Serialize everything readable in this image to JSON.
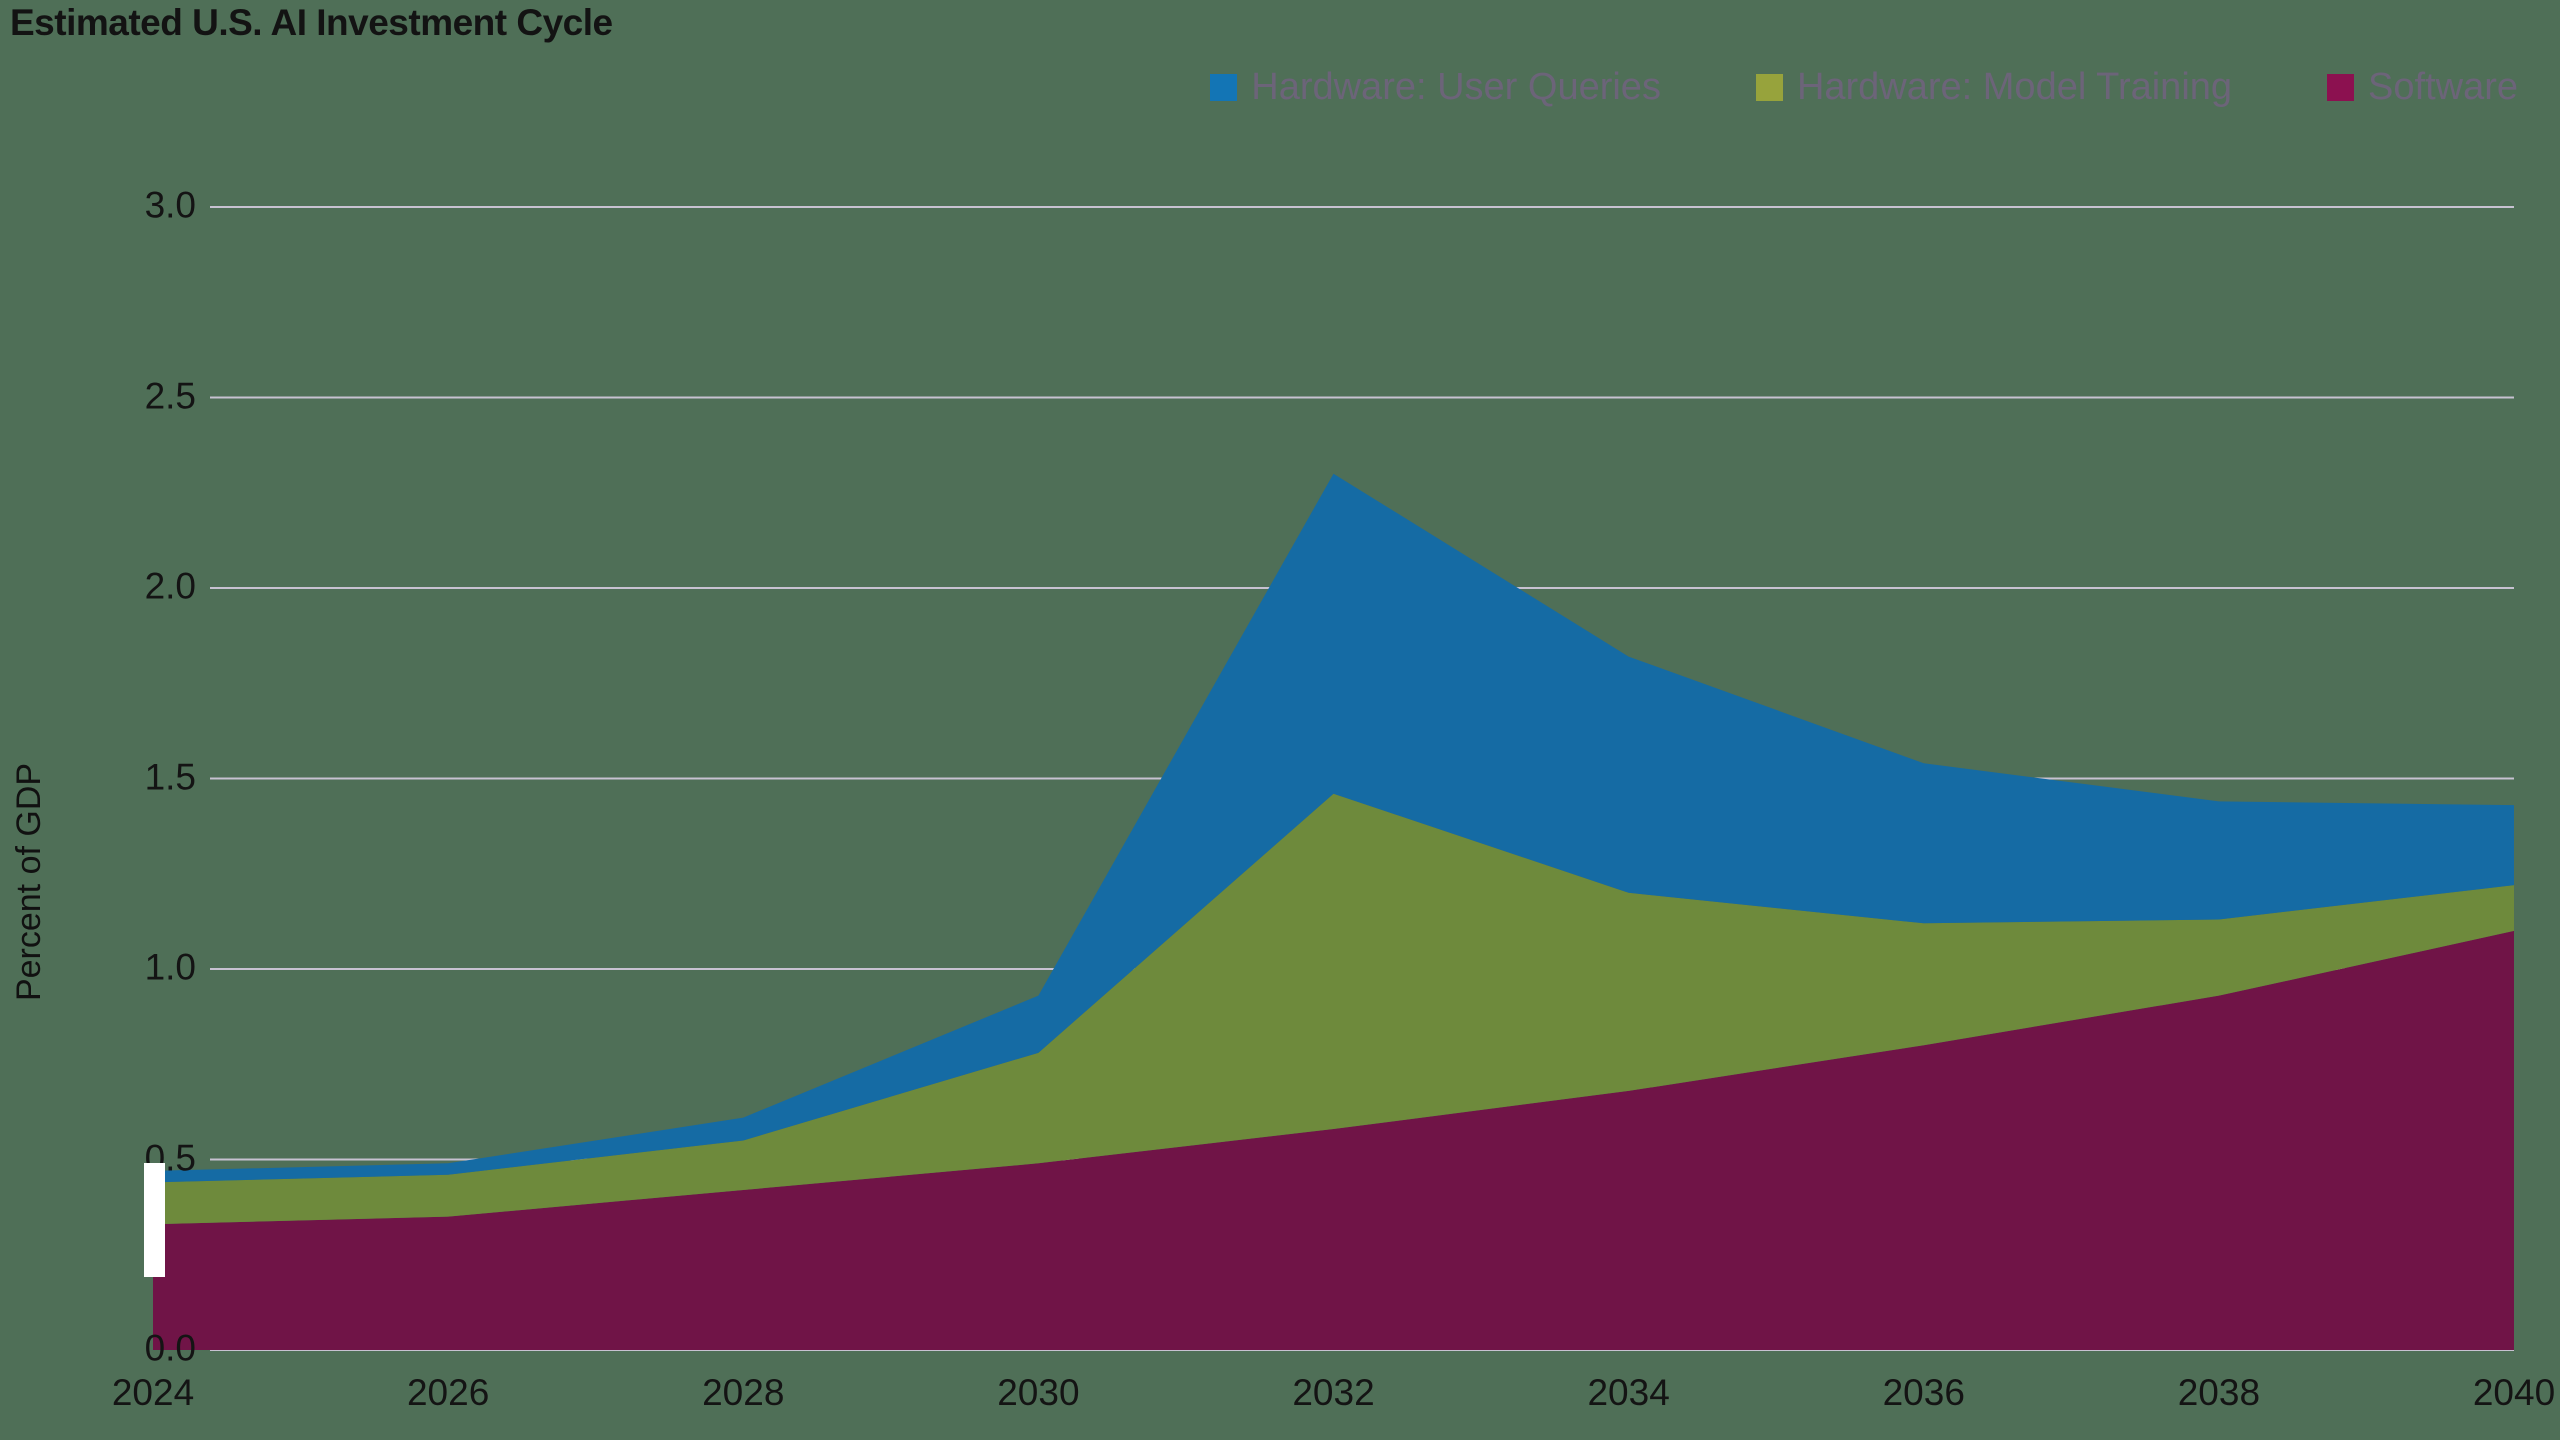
{
  "title": "Estimated U.S. AI Investment Cycle",
  "ylabel": "Percent of GDP",
  "colors": {
    "background": "#4f6f57",
    "gridline": "#c7c2d1",
    "legend_text": "#6c6479",
    "axis_text": "#141414",
    "title_text": "#131313"
  },
  "chart_data": {
    "type": "area",
    "stacked": true,
    "title": "Estimated U.S. AI Investment Cycle",
    "xlabel": "",
    "ylabel": "Percent of GDP",
    "ylim": [
      0,
      3.0
    ],
    "grid": true,
    "legend_position": "top-right",
    "x": [
      2024,
      2026,
      2028,
      2030,
      2032,
      2034,
      2036,
      2038,
      2040
    ],
    "x_tick_labels": [
      "2024",
      "2026",
      "2028",
      "2030",
      "2032",
      "2034",
      "2036",
      "2038",
      "2040"
    ],
    "y_ticks": [
      0.0,
      0.5,
      1.0,
      1.5,
      2.0,
      2.5,
      3.0
    ],
    "y_tick_labels": [
      "0.0",
      "0.5",
      "1.0",
      "1.5",
      "2.0",
      "2.5",
      "3.0"
    ],
    "series": [
      {
        "name": "Software",
        "color": "#701447",
        "legend_color": "#8c1150",
        "values": [
          0.33,
          0.35,
          0.42,
          0.49,
          0.58,
          0.68,
          0.8,
          0.93,
          1.1
        ]
      },
      {
        "name": "Hardware: Model Training",
        "color": "#6e8a3c",
        "legend_color": "#97a33c",
        "values": [
          0.11,
          0.11,
          0.13,
          0.29,
          0.88,
          0.52,
          0.32,
          0.2,
          0.12
        ]
      },
      {
        "name": "Hardware: User Queries",
        "color": "#156ba4",
        "legend_color": "#1375b5",
        "values": [
          0.03,
          0.03,
          0.06,
          0.15,
          0.84,
          0.62,
          0.42,
          0.31,
          0.21
        ]
      }
    ],
    "legend_order": [
      2,
      1,
      0
    ]
  }
}
